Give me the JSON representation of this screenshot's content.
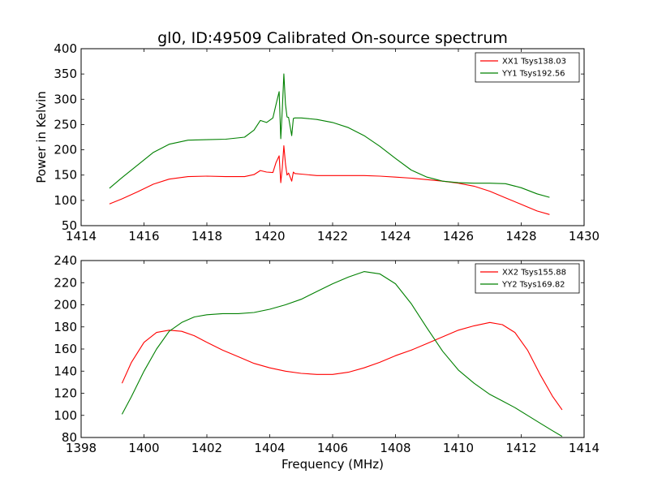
{
  "title": "gl0, ID:49509 Calibrated On-source spectrum",
  "colors": {
    "xx": "#ff0000",
    "yy": "#008000",
    "axis": "#000000",
    "background": "#ffffff"
  },
  "chart_data": [
    {
      "type": "line",
      "title": "gl0, ID:49509 Calibrated On-source spectrum",
      "xlabel": "",
      "ylabel": "Power in Kelvin",
      "xlim": [
        1414,
        1430
      ],
      "ylim": [
        50,
        400
      ],
      "xticks": [
        1414,
        1416,
        1418,
        1420,
        1422,
        1424,
        1426,
        1428,
        1430
      ],
      "yticks": [
        50,
        100,
        150,
        200,
        250,
        300,
        350,
        400
      ],
      "grid": false,
      "legend": "top-right",
      "series": [
        {
          "name": "XX1 Tsys138.03",
          "color": "#ff0000",
          "x": [
            1414.9,
            1415.3,
            1415.8,
            1416.3,
            1416.8,
            1417.4,
            1418.0,
            1418.6,
            1419.2,
            1419.5,
            1419.7,
            1419.9,
            1420.1,
            1420.2,
            1420.3,
            1420.35,
            1420.4,
            1420.45,
            1420.5,
            1420.55,
            1420.6,
            1420.7,
            1420.75,
            1420.8,
            1421.0,
            1421.5,
            1422.0,
            1422.5,
            1423.0,
            1423.5,
            1424.0,
            1424.5,
            1425.0,
            1425.5,
            1426.0,
            1426.5,
            1427.0,
            1427.5,
            1428.0,
            1428.5,
            1428.9
          ],
          "y": [
            93,
            103,
            117,
            132,
            142,
            147,
            148,
            147,
            147,
            151,
            159,
            156,
            155,
            175,
            188,
            135,
            165,
            208,
            172,
            150,
            154,
            138,
            156,
            153,
            152,
            149,
            149,
            149,
            149,
            148,
            146,
            144,
            141,
            138,
            134,
            128,
            118,
            105,
            92,
            79,
            72
          ]
        },
        {
          "name": "YY1 Tsys192.56",
          "color": "#008000",
          "x": [
            1414.9,
            1415.3,
            1415.8,
            1416.3,
            1416.8,
            1417.4,
            1418.0,
            1418.6,
            1419.2,
            1419.5,
            1419.7,
            1419.9,
            1420.1,
            1420.2,
            1420.3,
            1420.35,
            1420.4,
            1420.45,
            1420.5,
            1420.55,
            1420.6,
            1420.7,
            1420.75,
            1420.8,
            1421.0,
            1421.5,
            1422.0,
            1422.5,
            1423.0,
            1423.5,
            1424.0,
            1424.5,
            1425.0,
            1425.5,
            1426.0,
            1426.5,
            1427.0,
            1427.5,
            1428.0,
            1428.5,
            1428.9
          ],
          "y": [
            124,
            145,
            170,
            195,
            211,
            219,
            220,
            221,
            225,
            239,
            258,
            254,
            263,
            290,
            315,
            222,
            280,
            350,
            290,
            265,
            264,
            228,
            262,
            263,
            263,
            260,
            254,
            244,
            228,
            207,
            183,
            160,
            146,
            138,
            135,
            134,
            134,
            133,
            125,
            113,
            106
          ]
        }
      ]
    },
    {
      "type": "line",
      "title": "",
      "xlabel": "Frequency (MHz)",
      "ylabel": "",
      "xlim": [
        1398,
        1414
      ],
      "ylim": [
        80,
        240
      ],
      "xticks": [
        1398,
        1400,
        1402,
        1404,
        1406,
        1408,
        1410,
        1412,
        1414
      ],
      "yticks": [
        80,
        100,
        120,
        140,
        160,
        180,
        200,
        220,
        240
      ],
      "grid": false,
      "legend": "top-right",
      "series": [
        {
          "name": "XX2 Tsys155.88",
          "color": "#ff0000",
          "x": [
            1399.3,
            1399.6,
            1400.0,
            1400.4,
            1400.8,
            1401.2,
            1401.6,
            1402.0,
            1402.5,
            1403.0,
            1403.5,
            1404.0,
            1404.5,
            1405.0,
            1405.5,
            1406.0,
            1406.5,
            1407.0,
            1407.5,
            1408.0,
            1408.5,
            1409.0,
            1409.5,
            1410.0,
            1410.5,
            1411.0,
            1411.4,
            1411.8,
            1412.2,
            1412.6,
            1413.0,
            1413.3
          ],
          "y": [
            129,
            148,
            166,
            175,
            177,
            176,
            172,
            166,
            159,
            153,
            147,
            143,
            140,
            138,
            137,
            137,
            139,
            143,
            148,
            154,
            159,
            165,
            171,
            177,
            181,
            184,
            182,
            175,
            159,
            137,
            117,
            105
          ]
        },
        {
          "name": "YY2 Tsys169.82",
          "color": "#008000",
          "x": [
            1399.3,
            1399.6,
            1400.0,
            1400.4,
            1400.8,
            1401.2,
            1401.6,
            1402.0,
            1402.5,
            1403.0,
            1403.5,
            1404.0,
            1404.5,
            1405.0,
            1405.5,
            1406.0,
            1406.5,
            1407.0,
            1407.5,
            1408.0,
            1408.5,
            1409.0,
            1409.5,
            1410.0,
            1410.5,
            1411.0,
            1411.4,
            1411.8,
            1412.2,
            1412.6,
            1413.0,
            1413.3
          ],
          "y": [
            101,
            117,
            140,
            160,
            176,
            184,
            189,
            191,
            192,
            192,
            193,
            196,
            200,
            205,
            212,
            219,
            225,
            230,
            228,
            219,
            201,
            179,
            158,
            141,
            129,
            119,
            113,
            107,
            100,
            93,
            86,
            81
          ]
        }
      ]
    }
  ]
}
